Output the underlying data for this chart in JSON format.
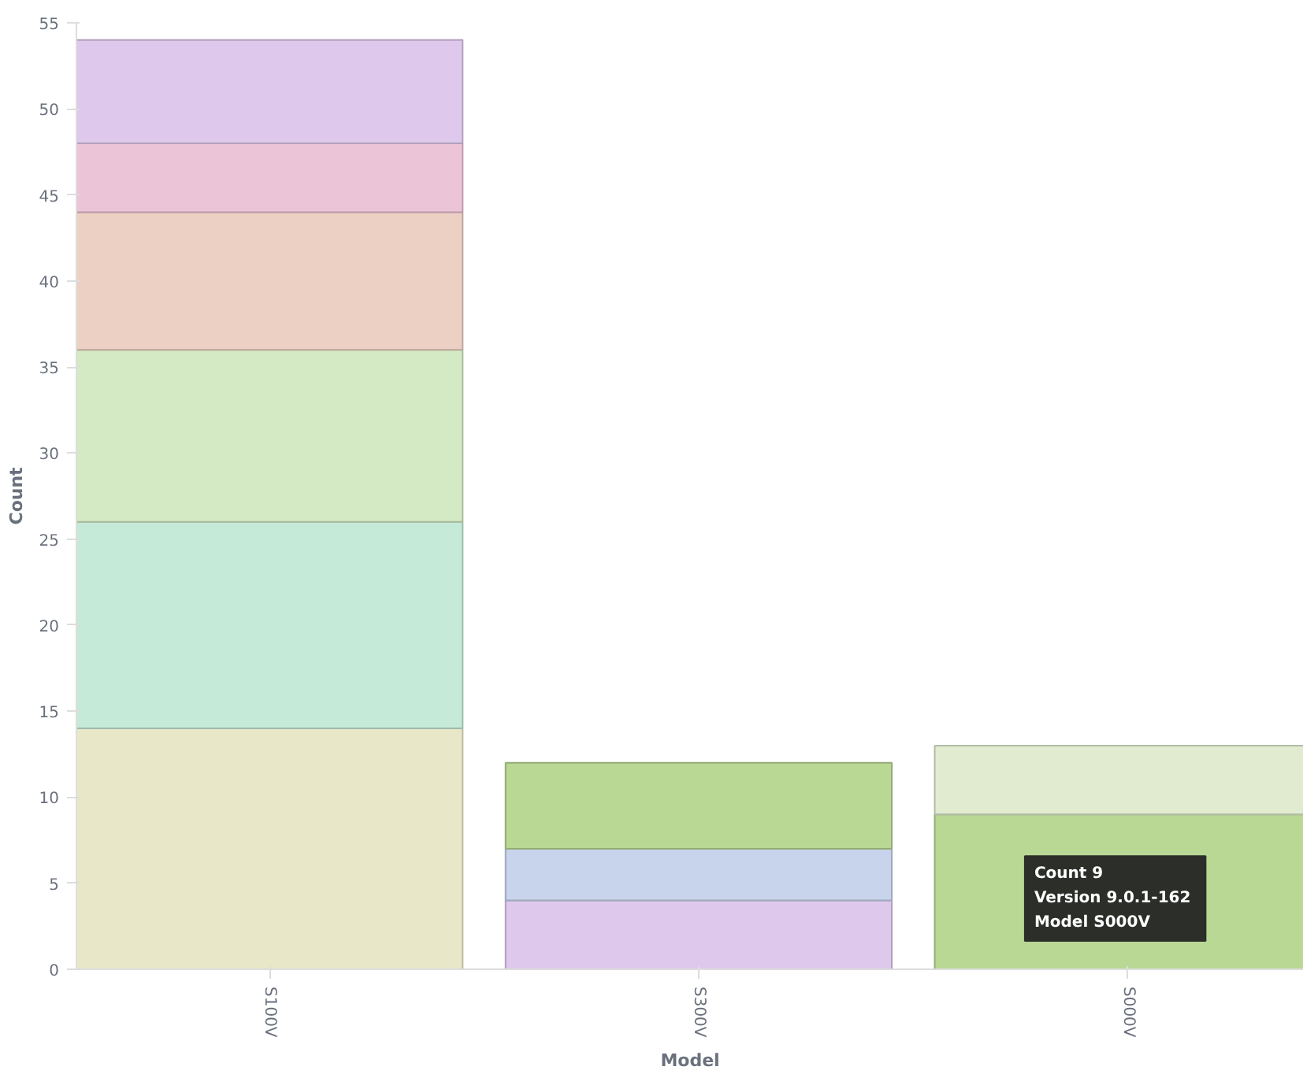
{
  "chart_data": {
    "type": "bar",
    "stacked": true,
    "xlabel": "Model",
    "ylabel": "Count",
    "categories": [
      "S100V",
      "S300V",
      "S000V"
    ],
    "series": [
      {
        "color": "#e8e8c8",
        "values": [
          14,
          null,
          null
        ]
      },
      {
        "color": "#c6ead8",
        "values": [
          12,
          null,
          null
        ]
      },
      {
        "color": "#d4eac4",
        "values": [
          10,
          null,
          null
        ]
      },
      {
        "color": "#ecd0c4",
        "values": [
          8,
          null,
          null
        ]
      },
      {
        "color": "#ecc4d8",
        "values": [
          4,
          null,
          null
        ]
      },
      {
        "color": "#dec8ec",
        "values": [
          6,
          4,
          null
        ]
      },
      {
        "color": "#c8d4ec",
        "values": [
          null,
          3,
          null
        ]
      },
      {
        "color": "#b8d894",
        "values": [
          null,
          5,
          9
        ]
      },
      {
        "color": "#e0ebd0",
        "values": [
          null,
          null,
          4
        ]
      }
    ],
    "ylim": [
      0,
      55
    ],
    "yticks": [
      0,
      5,
      10,
      15,
      20,
      25,
      30,
      35,
      40,
      45,
      50,
      55
    ],
    "grid": false,
    "annotations": [
      "Count     9\nVersion  9.0.1-162\nModel    S000V"
    ]
  }
}
